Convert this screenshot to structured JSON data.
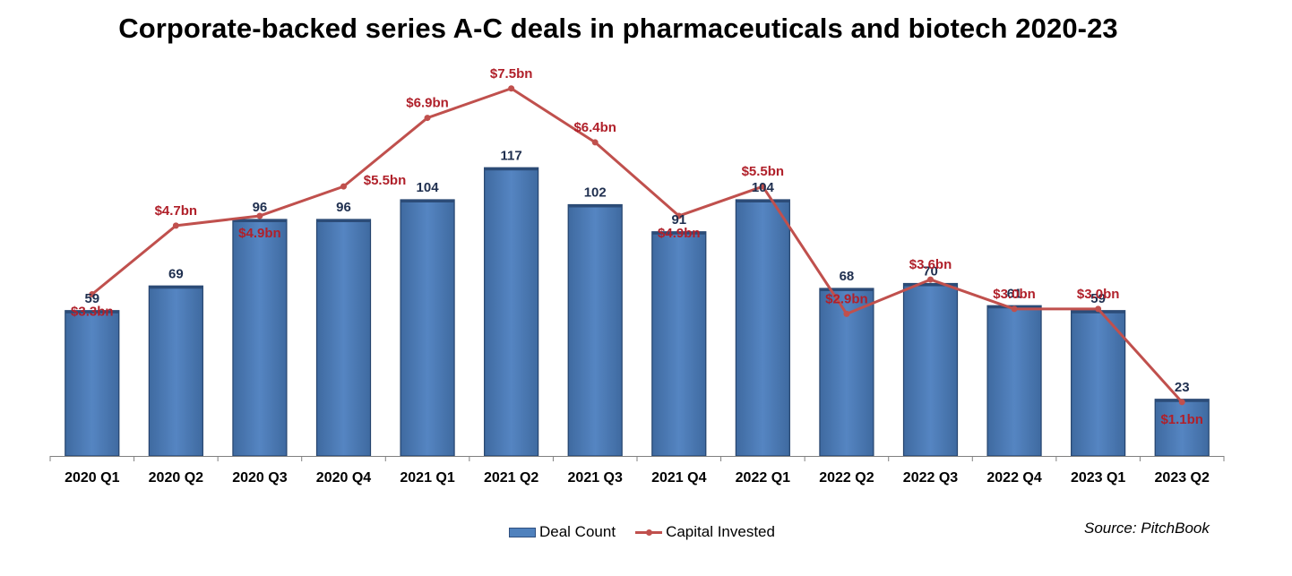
{
  "chart_data": {
    "type": "bar",
    "title": "Corporate-backed series A-C deals in pharmaceuticals and biotech 2020-23",
    "categories": [
      "2020 Q1",
      "2020 Q2",
      "2020 Q3",
      "2020 Q4",
      "2021 Q1",
      "2021 Q2",
      "2021 Q3",
      "2021 Q4",
      "2022 Q1",
      "2022 Q2",
      "2022 Q3",
      "2022 Q4",
      "2023 Q1",
      "2023 Q2"
    ],
    "series": [
      {
        "name": "Deal Count",
        "type": "bar",
        "color": "#4f81bd",
        "values": [
          59,
          69,
          96,
          96,
          104,
          117,
          102,
          91,
          104,
          68,
          70,
          61,
          59,
          23
        ],
        "labels": [
          "59",
          "69",
          "96",
          "96",
          "104",
          "117",
          "102",
          "91",
          "104",
          "68",
          "70",
          "61",
          "59",
          "23"
        ]
      },
      {
        "name": "Capital Invested",
        "type": "line",
        "color": "#c0504d",
        "values": [
          3.3,
          4.7,
          4.9,
          5.5,
          6.9,
          7.5,
          6.4,
          4.9,
          5.5,
          2.9,
          3.6,
          3.0,
          3.0,
          1.1
        ],
        "labels": [
          "$3.3bn",
          "$4.7bn",
          "$4.9bn",
          "$5.5bn",
          "$6.9bn",
          "$7.5bn",
          "$6.4bn",
          "$4.9bn",
          "$5.5bn",
          "$2.9bn",
          "$3.6bn",
          "$3.0bn",
          "$3.0bn",
          "$1.1bn"
        ],
        "label_positions": [
          "below",
          "above",
          "below",
          "right",
          "above",
          "above",
          "above",
          "below",
          "above",
          "above",
          "above",
          "above",
          "above",
          "below"
        ]
      }
    ],
    "bar_ylim": [
      0,
      130
    ],
    "line_ylim": [
      0,
      8
    ],
    "grid": false,
    "legend_position": "bottom-center"
  },
  "source": "Source: PitchBook"
}
